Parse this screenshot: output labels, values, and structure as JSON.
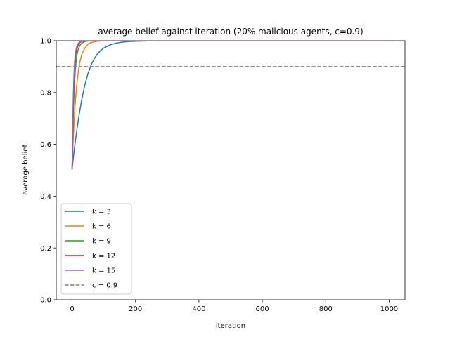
{
  "chart_data": {
    "type": "line",
    "title": "average belief against iteration (20% malicious agents, c=0.9)",
    "xlabel": "iteration",
    "ylabel": "average belief",
    "xlim": [
      -50,
      1050
    ],
    "ylim": [
      0.0,
      1.0
    ],
    "xticks": [
      0,
      200,
      400,
      600,
      800,
      1000
    ],
    "yticks": [
      0.0,
      0.2,
      0.4,
      0.6,
      0.8,
      1.0
    ],
    "xtick_labels": [
      "0",
      "200",
      "400",
      "600",
      "800",
      "1000"
    ],
    "ytick_labels": [
      "0.0",
      "0.2",
      "0.4",
      "0.6",
      "0.8",
      "1.0"
    ],
    "grid": false,
    "legend_position": "lower-left",
    "series": [
      {
        "name": "k = 3",
        "color": "#1f77b4",
        "x": [
          0,
          5,
          10,
          15,
          20,
          25,
          30,
          40,
          50,
          60,
          70,
          80,
          90,
          100,
          120,
          140,
          160,
          180,
          200,
          230,
          260,
          300,
          400,
          600,
          800,
          1000
        ],
        "y": [
          0.505,
          0.56,
          0.61,
          0.655,
          0.697,
          0.735,
          0.77,
          0.828,
          0.873,
          0.906,
          0.931,
          0.949,
          0.962,
          0.972,
          0.984,
          0.991,
          0.995,
          0.997,
          0.998,
          0.999,
          1.0,
          1.0,
          1.0,
          1.0,
          1.0,
          1.0
        ]
      },
      {
        "name": "k = 6",
        "color": "#ff7f0e",
        "x": [
          0,
          3,
          6,
          10,
          15,
          20,
          25,
          30,
          40,
          50,
          60,
          70,
          80,
          90,
          100,
          130,
          160,
          200,
          300,
          500,
          800,
          1000
        ],
        "y": [
          0.505,
          0.6,
          0.68,
          0.76,
          0.835,
          0.885,
          0.92,
          0.945,
          0.972,
          0.986,
          0.993,
          0.996,
          0.998,
          0.999,
          1.0,
          1.0,
          1.0,
          1.0,
          1.0,
          1.0,
          1.0,
          1.0
        ]
      },
      {
        "name": "k = 9",
        "color": "#2ca02c",
        "x": [
          0,
          2,
          4,
          6,
          8,
          10,
          13,
          16,
          20,
          25,
          30,
          40,
          50,
          60,
          80,
          100,
          200,
          400,
          700,
          1000
        ],
        "y": [
          0.505,
          0.62,
          0.72,
          0.79,
          0.845,
          0.885,
          0.925,
          0.95,
          0.97,
          0.983,
          0.99,
          0.997,
          0.999,
          1.0,
          1.0,
          1.0,
          1.0,
          1.0,
          1.0,
          1.0
        ]
      },
      {
        "name": "k = 12",
        "color": "#d62728",
        "x": [
          0,
          2,
          4,
          6,
          8,
          10,
          13,
          16,
          20,
          25,
          30,
          40,
          50,
          70,
          100,
          200,
          400,
          700,
          1000
        ],
        "y": [
          0.505,
          0.66,
          0.77,
          0.845,
          0.895,
          0.93,
          0.957,
          0.973,
          0.985,
          0.993,
          0.997,
          0.999,
          1.0,
          1.0,
          1.0,
          1.0,
          1.0,
          1.0,
          1.0
        ]
      },
      {
        "name": "k = 15",
        "color": "#9467bd",
        "x": [
          0,
          1,
          2,
          4,
          6,
          8,
          10,
          13,
          16,
          20,
          25,
          30,
          40,
          50,
          70,
          100,
          200,
          400,
          700,
          1000
        ],
        "y": [
          0.505,
          0.6,
          0.68,
          0.8,
          0.875,
          0.92,
          0.948,
          0.97,
          0.982,
          0.991,
          0.996,
          0.998,
          1.0,
          1.0,
          1.0,
          1.0,
          1.0,
          1.0,
          1.0,
          1.0
        ]
      },
      {
        "name": "c = 0.9",
        "color": "#7f7f7f",
        "dashed": true,
        "x": [
          -50,
          1050
        ],
        "y": [
          0.9,
          0.9
        ]
      }
    ]
  }
}
